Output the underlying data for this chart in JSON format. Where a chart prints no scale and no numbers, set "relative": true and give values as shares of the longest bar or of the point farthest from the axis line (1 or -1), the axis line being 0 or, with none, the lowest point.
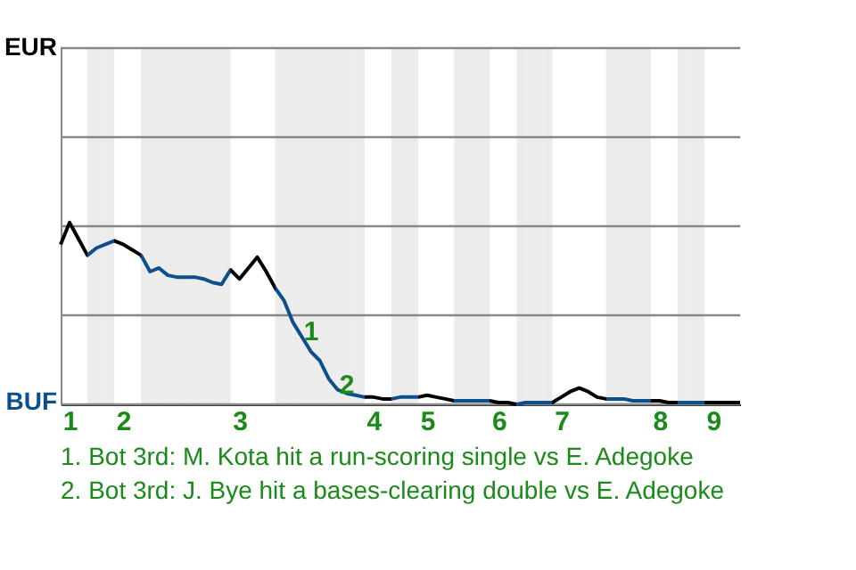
{
  "chart_data": {
    "type": "line",
    "relative": true,
    "ylim": [
      0,
      1.96
    ],
    "categories": [
      null,
      "1",
      null,
      null,
      null,
      null,
      null,
      "2",
      null,
      null,
      null,
      null,
      null,
      null,
      null,
      null,
      null,
      null,
      null,
      null,
      "3",
      null,
      null,
      null,
      null,
      null,
      null,
      null,
      null,
      null,
      null,
      null,
      null,
      null,
      null,
      "4",
      null,
      null,
      null,
      null,
      null,
      "5",
      null,
      null,
      null,
      null,
      null,
      null,
      null,
      "6",
      null,
      null,
      null,
      null,
      null,
      null,
      "7",
      null,
      null,
      null,
      null,
      null,
      null,
      null,
      null,
      null,
      null,
      "8",
      null,
      null,
      null,
      null,
      null,
      "9",
      null,
      null,
      null
    ],
    "grid": "y",
    "marker": "none",
    "series": [
      {
        "color": "#000000",
        "values": [
          0.88,
          1,
          0.91,
          0.82,
          0.86,
          0.88,
          0.9,
          0.88,
          0.85,
          0.82,
          0.73,
          0.75,
          0.71,
          0.7,
          0.7,
          0.7,
          0.69,
          0.67,
          0.66,
          0.74,
          0.69,
          0.75,
          0.81,
          0.73,
          0.64,
          0.57,
          0.45,
          0.37,
          0.29,
          0.24,
          0.14,
          0.08,
          0.06,
          0.05,
          0.04,
          0.04,
          0.03,
          0.03,
          0.04,
          0.04,
          0.04,
          0.05,
          0.04,
          0.03,
          0.02,
          0.02,
          0.02,
          0.02,
          0.02,
          0.01,
          0.01,
          0,
          0.01,
          0.01,
          0.01,
          0.01,
          0.04,
          0.07,
          0.09,
          0.07,
          0.04,
          0.03,
          0.03,
          0.03,
          0.02,
          0.02,
          0.02,
          0.02,
          0.01,
          0.01,
          0.01,
          0.01,
          0.01,
          0.01,
          0.01,
          0.01,
          0.01
        ],
        "colors": [
          "#000000",
          "#000000",
          "#000000",
          "#0d4f8b",
          "#0d4f8b",
          "#0d4f8b",
          "#000000",
          "#000000",
          "#000000",
          "#0d4f8b",
          "#0d4f8b",
          "#0d4f8b",
          "#0d4f8b",
          "#0d4f8b",
          "#0d4f8b",
          "#0d4f8b",
          "#0d4f8b",
          "#0d4f8b",
          "#0d4f8b",
          "#000000",
          "#000000",
          "#000000",
          "#000000",
          "#000000",
          "#0d4f8b",
          "#0d4f8b",
          "#0d4f8b",
          "#0d4f8b",
          "#0d4f8b",
          "#0d4f8b",
          "#0d4f8b",
          "#0d4f8b",
          "#0d4f8b",
          "#0d4f8b",
          "#000000",
          "#000000",
          "#000000",
          "#0d4f8b",
          "#0d4f8b",
          "#0d4f8b",
          "#000000",
          "#000000",
          "#000000",
          "#000000",
          "#0d4f8b",
          "#0d4f8b",
          "#0d4f8b",
          "#0d4f8b",
          "#000000",
          "#000000",
          "#000000",
          "#0d4f8b",
          "#0d4f8b",
          "#0d4f8b",
          "#0d4f8b",
          "#000000",
          "#000000",
          "#000000",
          "#000000",
          "#000000",
          "#000000",
          "#0d4f8b",
          "#0d4f8b",
          "#0d4f8b",
          "#0d4f8b",
          "#0d4f8b",
          "#000000",
          "#000000",
          "#000000",
          "#0d4f8b",
          "#0d4f8b",
          "#0d4f8b",
          "#000000",
          "#000000",
          "#000000",
          "#000000",
          "#000000"
        ]
      }
    ],
    "annotations": [
      "EUR",
      "BUF",
      {
        "text": "1",
        "y": 0.37
      },
      {
        "text": "2",
        "y": 0.08
      },
      "1. Bot 3rd: M. Kota hit a run-scoring single vs E. Adegoke",
      "2. Bot 3rd: J. Bye hit a bases-clearing double vs E. Adegoke"
    ]
  }
}
